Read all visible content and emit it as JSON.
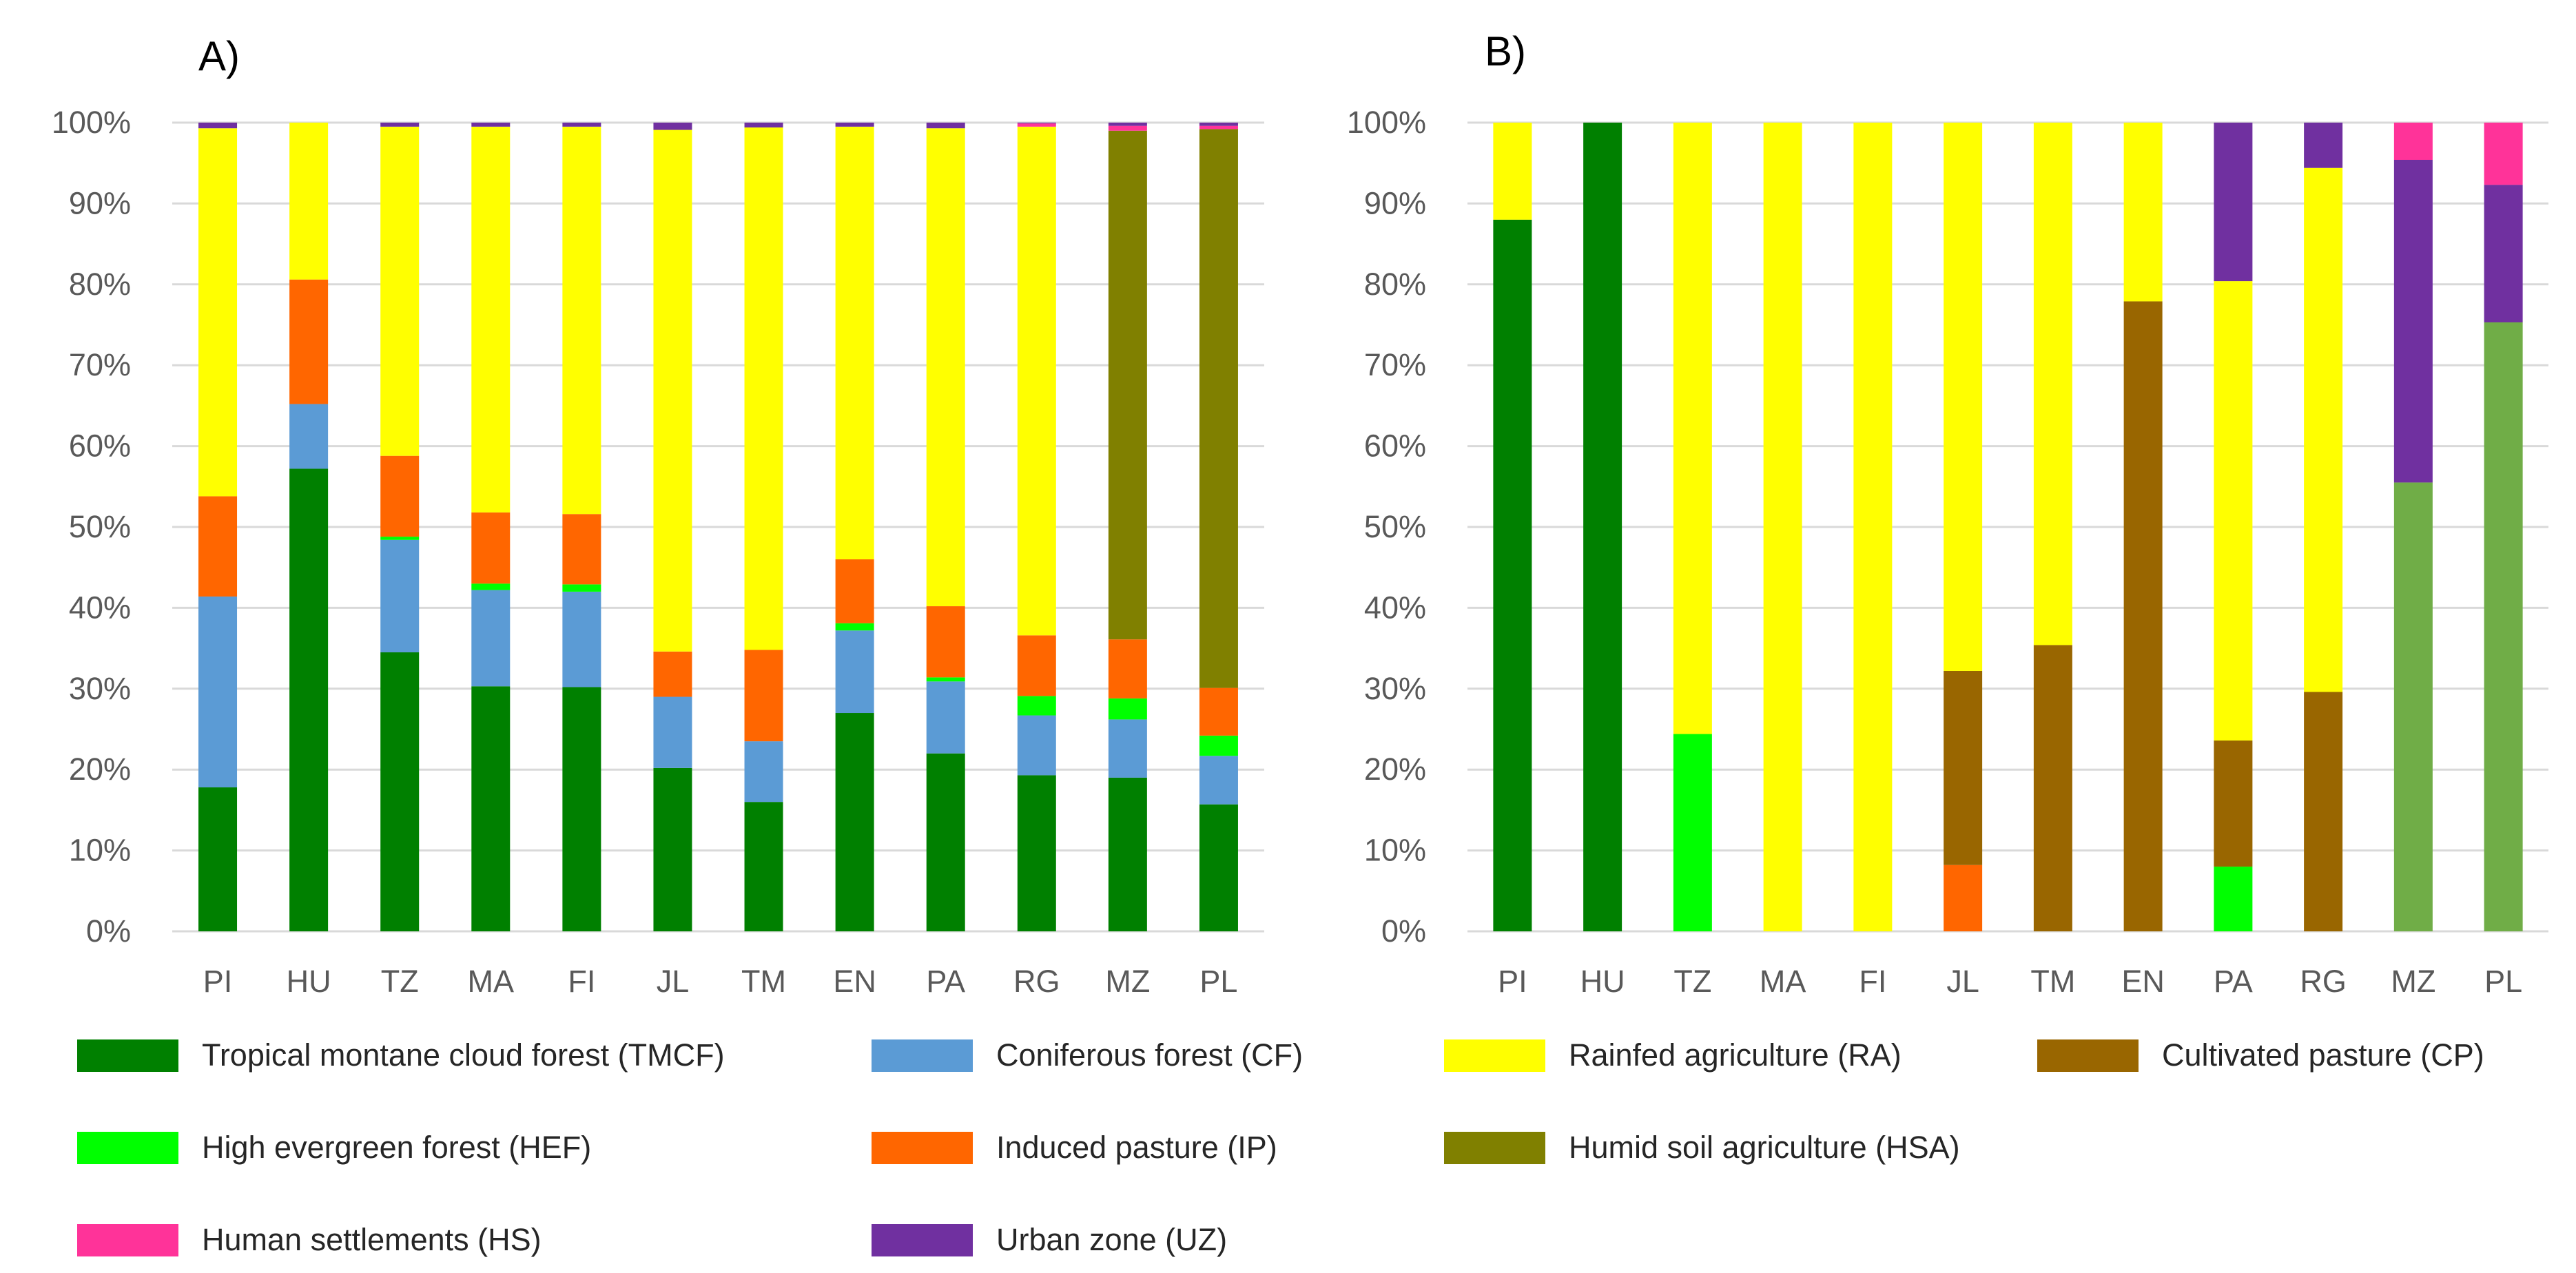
{
  "colors": {
    "TMCF": "#008000",
    "CF": "#5b9bd5",
    "HEF": "#00ff00",
    "IP": "#ff6600",
    "HS": "#ff3399",
    "UZ": "#7030a0",
    "RA": "#ffff00",
    "CP": "#996600",
    "HSA": "#808000",
    "RA2": "#70ad47",
    "grid": "#d9d9d9",
    "tick": "#595959"
  },
  "legend": [
    {
      "key": "TMCF",
      "label": "Tropical montane cloud forest (TMCF)"
    },
    {
      "key": "CF",
      "label": "Coniferous forest (CF)"
    },
    {
      "key": "RA",
      "label": "Rainfed agriculture (RA)"
    },
    {
      "key": "CP",
      "label": "Cultivated pasture (CP)"
    },
    {
      "key": "HEF",
      "label": "High evergreen forest (HEF)"
    },
    {
      "key": "IP",
      "label": "Induced pasture (IP)"
    },
    {
      "key": "HSA",
      "label": "Humid soil agriculture (HSA)"
    },
    {
      "key": "HS",
      "label": "Human settlements (HS)"
    },
    {
      "key": "UZ",
      "label": "Urban zone (UZ)"
    }
  ],
  "chart_data": [
    {
      "type": "bar",
      "stacked": true,
      "title": "A)",
      "xlabel": "",
      "ylabel": "",
      "ylim": [
        0,
        100
      ],
      "yticks": [
        "0%",
        "10%",
        "20%",
        "30%",
        "40%",
        "50%",
        "60%",
        "70%",
        "80%",
        "90%",
        "100%"
      ],
      "grid": true,
      "categories": [
        "PI",
        "HU",
        "TZ",
        "MA",
        "FI",
        "JL",
        "TM",
        "EN",
        "PA",
        "RG",
        "MZ",
        "PL"
      ],
      "series": [
        {
          "key": "TMCF",
          "values": [
            17.8,
            57.2,
            34.5,
            30.3,
            30.2,
            20.2,
            16.0,
            27.0,
            22.0,
            19.3,
            19.0,
            15.7
          ]
        },
        {
          "key": "CF",
          "values": [
            23.6,
            8.0,
            13.9,
            11.9,
            11.8,
            8.8,
            7.5,
            10.2,
            8.9,
            7.4,
            7.2,
            6.0
          ]
        },
        {
          "key": "HEF",
          "values": [
            0,
            0,
            0.4,
            0.8,
            0.9,
            0,
            0,
            0.9,
            0.5,
            2.4,
            2.6,
            2.5
          ]
        },
        {
          "key": "IP",
          "values": [
            12.4,
            15.4,
            10.0,
            8.8,
            8.7,
            5.6,
            11.3,
            7.9,
            8.8,
            7.5,
            7.3,
            5.9
          ]
        },
        {
          "key": "HSA",
          "values": [
            0,
            0,
            0,
            0,
            0,
            0,
            0,
            0,
            0,
            0,
            62.9,
            69.1
          ]
        },
        {
          "key": "RA",
          "values": [
            45.5,
            19.4,
            40.7,
            47.7,
            47.9,
            64.5,
            64.6,
            53.5,
            59.1,
            62.9,
            0,
            0
          ]
        },
        {
          "key": "HS",
          "values": [
            0,
            0,
            0,
            0,
            0,
            0,
            0,
            0,
            0,
            0.4,
            0.6,
            0.4
          ]
        },
        {
          "key": "UZ",
          "values": [
            0.7,
            0,
            0.5,
            0.5,
            0.5,
            0.9,
            0.6,
            0.5,
            0.7,
            0.1,
            0.4,
            0.4
          ]
        }
      ]
    },
    {
      "type": "bar",
      "stacked": true,
      "title": "B)",
      "xlabel": "",
      "ylabel": "",
      "ylim": [
        0,
        100
      ],
      "yticks": [
        "0%",
        "10%",
        "20%",
        "30%",
        "40%",
        "50%",
        "60%",
        "70%",
        "80%",
        "90%",
        "100%"
      ],
      "grid": true,
      "categories": [
        "PI",
        "HU",
        "TZ",
        "MA",
        "FI",
        "JL",
        "TM",
        "EN",
        "PA",
        "RG",
        "MZ",
        "PL"
      ],
      "series": [
        {
          "key": "TMCF",
          "values": [
            88.0,
            100,
            0,
            0,
            0,
            0,
            0,
            0,
            0,
            0,
            0,
            0
          ]
        },
        {
          "key": "HEF",
          "values": [
            0,
            0,
            24.4,
            0,
            0,
            0,
            0,
            0,
            8.0,
            0,
            0,
            0
          ]
        },
        {
          "key": "IP",
          "values": [
            0,
            0,
            0,
            0,
            0,
            8.2,
            0,
            0,
            0,
            0,
            0,
            0
          ]
        },
        {
          "key": "RA2",
          "values": [
            0,
            0,
            0,
            0,
            0,
            0,
            0,
            0,
            0,
            0,
            55.5,
            75.3
          ]
        },
        {
          "key": "CP",
          "values": [
            0,
            0,
            0,
            0,
            0,
            24.0,
            35.4,
            77.9,
            15.6,
            29.6,
            0,
            0
          ]
        },
        {
          "key": "RA",
          "values": [
            12.0,
            0,
            75.6,
            100,
            100,
            67.8,
            64.6,
            22.1,
            56.8,
            64.8,
            0,
            0
          ]
        },
        {
          "key": "UZ",
          "values": [
            0,
            0,
            0,
            0,
            0,
            0,
            0,
            0,
            19.6,
            5.6,
            39.9,
            17.0
          ]
        },
        {
          "key": "HS",
          "values": [
            0,
            0,
            0,
            0,
            0,
            0,
            0,
            0,
            0,
            0,
            4.6,
            7.7
          ]
        }
      ]
    }
  ]
}
